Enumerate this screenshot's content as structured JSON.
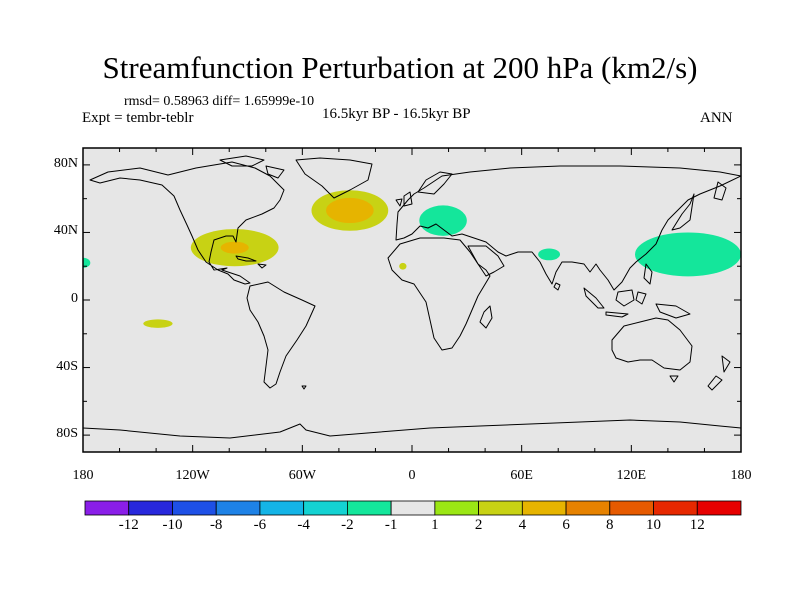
{
  "header": {
    "title": "Streamfunction Perturbation at 200 hPa (km2/s)",
    "stats": "rmsd= 0.58963 diff= 1.65999e-10",
    "experiment": "Expt = tembr-teblr",
    "period": "16.5kyr BP - 16.5kyr BP",
    "season": "ANN"
  },
  "map": {
    "projection": "cylindrical equidistant",
    "lon_range": [
      -180,
      180
    ],
    "lat_range": [
      -90,
      90
    ],
    "lat_labels": [
      "80N",
      "40N",
      "0",
      "40S",
      "80S"
    ],
    "lat_values": [
      80,
      40,
      0,
      -40,
      -80
    ],
    "lon_labels": [
      "180",
      "120W",
      "60W",
      "0",
      "60E",
      "120E",
      "180"
    ],
    "lon_values": [
      -180,
      -120,
      -60,
      0,
      60,
      120,
      180
    ],
    "ocean_color": "#e6e6e6",
    "coastline_color": "#000000",
    "anomalies": [
      {
        "name": "north-atlantic",
        "lon": -34,
        "lat": 53,
        "rlon": 21,
        "rlat": 12,
        "value": 2,
        "core_value": 4,
        "core_scale": 0.62
      },
      {
        "name": "north-america",
        "lon": -97,
        "lat": 31,
        "rlon": 24,
        "rlat": 11,
        "value": 2,
        "core_value": 4,
        "core_scale": 0.32
      },
      {
        "name": "europe",
        "lon": 17,
        "lat": 47,
        "rlon": 13,
        "rlat": 9,
        "value": -2
      },
      {
        "name": "north-pacific",
        "lon": 151,
        "lat": 27,
        "rlon": 29,
        "rlat": 13,
        "value": -2
      },
      {
        "name": "south-asia",
        "lon": 75,
        "lat": 27,
        "rlon": 6,
        "rlat": 3.5,
        "value": -2
      },
      {
        "name": "east-pacific",
        "lon": -180,
        "lat": 22,
        "rlon": 4,
        "rlat": 3,
        "value": -2
      },
      {
        "name": "south-pacific",
        "lon": -139,
        "lat": -14,
        "rlon": 8,
        "rlat": 2.5,
        "value": 2
      },
      {
        "name": "sahara",
        "lon": -5,
        "lat": 20,
        "rlon": 2,
        "rlat": 2,
        "value": 2
      }
    ]
  },
  "colorbar": {
    "labels": [
      "-12",
      "-10",
      "-8",
      "-6",
      "-4",
      "-2",
      "-1",
      "1",
      "2",
      "4",
      "6",
      "8",
      "10",
      "12"
    ],
    "colors": [
      "#8a1ee8",
      "#2828dc",
      "#1e50e6",
      "#1e82e6",
      "#14b4e6",
      "#14d2d2",
      "#14e69b",
      "#e6e6e6",
      "#9be614",
      "#c8d214",
      "#e6b400",
      "#e68200",
      "#e65a00",
      "#e62800",
      "#e60000"
    ]
  }
}
